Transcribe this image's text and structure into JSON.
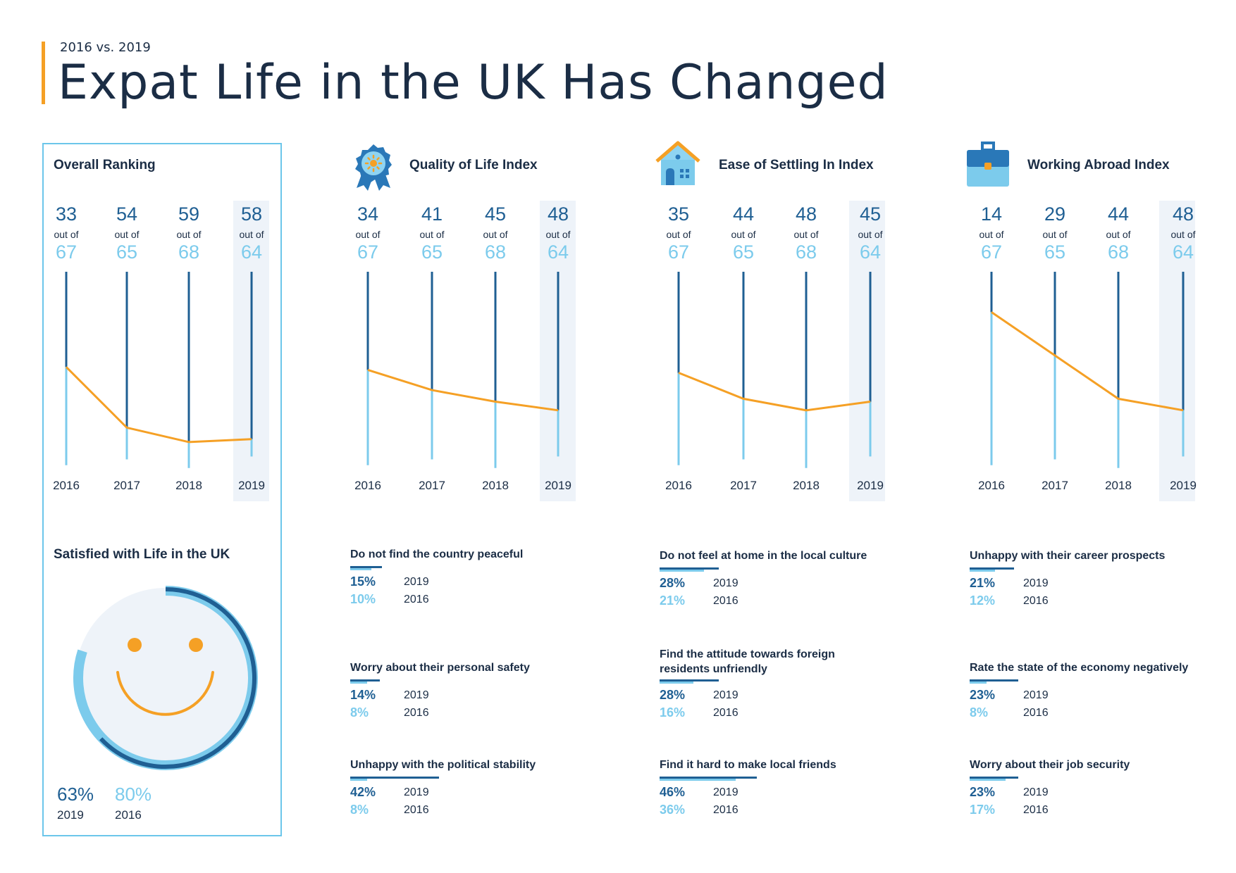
{
  "header": {
    "subtitle": "2016 vs. 2019",
    "title": "Expat Life in the UK Has Changed"
  },
  "colors": {
    "dark_blue": "#1f5f93",
    "light_blue": "#7ccbec",
    "orange": "#f5a025",
    "navy_text": "#1b2d45",
    "highlight": "#eef3f9"
  },
  "chart_data": [
    {
      "type": "line",
      "title": "Overall Ranking",
      "x": [
        "2016",
        "2017",
        "2018",
        "2019"
      ],
      "series": [
        {
          "values": [
            33,
            54,
            59,
            58
          ]
        },
        {
          "values": [
            67,
            65,
            68,
            64
          ]
        }
      ],
      "out_of": "out of",
      "highlighted": "2019"
    },
    {
      "type": "line",
      "title": "Quality of Life Index",
      "x": [
        "2016",
        "2017",
        "2018",
        "2019"
      ],
      "series": [
        {
          "values": [
            34,
            41,
            45,
            48
          ]
        },
        {
          "values": [
            67,
            65,
            68,
            64
          ]
        }
      ],
      "out_of": "out of",
      "highlighted": "2019"
    },
    {
      "type": "line",
      "title": "Ease of Settling In Index",
      "x": [
        "2016",
        "2017",
        "2018",
        "2019"
      ],
      "series": [
        {
          "values": [
            35,
            44,
            48,
            45
          ]
        },
        {
          "values": [
            67,
            65,
            68,
            64
          ]
        }
      ],
      "out_of": "out of",
      "highlighted": "2019"
    },
    {
      "type": "line",
      "title": "Working Abroad Index",
      "x": [
        "2016",
        "2017",
        "2018",
        "2019"
      ],
      "series": [
        {
          "values": [
            14,
            29,
            44,
            48
          ]
        },
        {
          "values": [
            67,
            65,
            68,
            64
          ]
        }
      ],
      "out_of": "out of",
      "highlighted": "2019"
    },
    {
      "type": "pie",
      "title": "Satisfied with Life in the UK",
      "series": [
        {
          "name": "2019",
          "values": [
            63
          ]
        },
        {
          "name": "2016",
          "values": [
            80
          ]
        }
      ],
      "labels": {
        "v2019": "63%",
        "v2016": "80%",
        "y2019": "2019",
        "y2016": "2016"
      }
    }
  ],
  "icons": [
    "award-icon",
    "house-icon",
    "briefcase-icon",
    "smiley-icon"
  ],
  "stats": [
    {
      "column": "Quality of Life Index",
      "items": [
        {
          "label": "Do not find the country peaceful",
          "v2019": 15,
          "v2016": 10,
          "p2019": "15%",
          "p2016": "10%",
          "y2019": "2019",
          "y2016": "2016"
        },
        {
          "label": "Worry about their personal safety",
          "v2019": 14,
          "v2016": 8,
          "p2019": "14%",
          "p2016": "8%",
          "y2019": "2019",
          "y2016": "2016"
        },
        {
          "label": "Unhappy with the political stability",
          "v2019": 42,
          "v2016": 8,
          "p2019": "42%",
          "p2016": "8%",
          "y2019": "2019",
          "y2016": "2016"
        }
      ]
    },
    {
      "column": "Ease of Settling In Index",
      "items": [
        {
          "label": "Do not feel at home in the local culture",
          "v2019": 28,
          "v2016": 21,
          "p2019": "28%",
          "p2016": "21%",
          "y2019": "2019",
          "y2016": "2016"
        },
        {
          "label": "Find the attitude towards foreign residents unfriendly",
          "v2019": 28,
          "v2016": 16,
          "p2019": "28%",
          "p2016": "16%",
          "y2019": "2019",
          "y2016": "2016"
        },
        {
          "label": "Find it hard to make local friends",
          "v2019": 46,
          "v2016": 36,
          "p2019": "46%",
          "p2016": "36%",
          "y2019": "2019",
          "y2016": "2016"
        }
      ]
    },
    {
      "column": "Working Abroad Index",
      "items": [
        {
          "label": "Unhappy with their career prospects",
          "v2019": 21,
          "v2016": 12,
          "p2019": "21%",
          "p2016": "12%",
          "y2019": "2019",
          "y2016": "2016"
        },
        {
          "label": "Rate the state of the economy negatively",
          "v2019": 23,
          "v2016": 8,
          "p2019": "23%",
          "p2016": "8%",
          "y2019": "2019",
          "y2016": "2016"
        },
        {
          "label": "Worry about their job security",
          "v2019": 23,
          "v2016": 17,
          "p2019": "23%",
          "p2016": "17%",
          "y2019": "2019",
          "y2016": "2016"
        }
      ]
    }
  ]
}
